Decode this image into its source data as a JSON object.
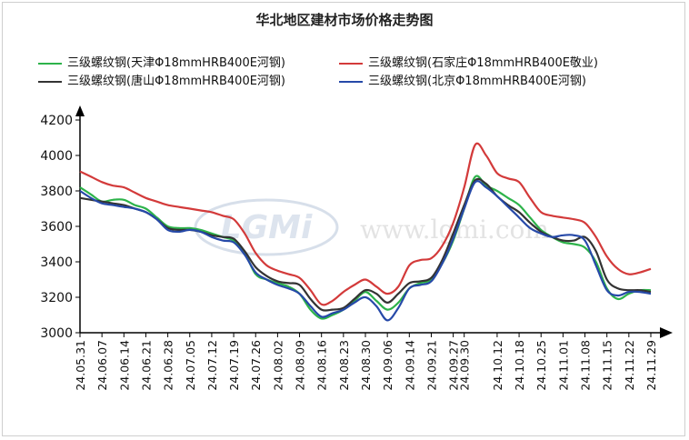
{
  "chart_data": {
    "type": "line",
    "title": "华北地区建材市场价格走势图",
    "watermark": {
      "logo": "LGMi",
      "url": "www.lgmi.com"
    },
    "xlabel": "",
    "ylabel": "",
    "ylim": [
      3000,
      4200
    ],
    "yticks": [
      3000,
      3200,
      3400,
      3600,
      3800,
      4000,
      4200
    ],
    "x": [
      "24.05.31",
      "24.06.03",
      "24.06.07",
      "24.06.11",
      "24.06.14",
      "24.06.18",
      "24.06.21",
      "24.06.25",
      "24.06.28",
      "24.07.02",
      "24.07.05",
      "24.07.09",
      "24.07.12",
      "24.07.16",
      "24.07.19",
      "24.07.23",
      "24.07.26",
      "24.07.30",
      "24.08.02",
      "24.08.06",
      "24.08.09",
      "24.08.13",
      "24.08.16",
      "24.08.20",
      "24.08.23",
      "24.08.27",
      "24.08.30",
      "24.09.03",
      "24.09.06",
      "24.09.10",
      "24.09.14",
      "24.09.18",
      "24.09.21",
      "24.09.24",
      "24.09.27",
      "24.09.30",
      "24.10.08",
      "24.10.10",
      "24.10.12",
      "24.10.15",
      "24.10.18",
      "24.10.22",
      "24.10.25",
      "24.10.29",
      "24.11.01",
      "24.11.05",
      "24.11.08",
      "24.11.12",
      "24.11.15",
      "24.11.19",
      "24.11.22",
      "24.11.26",
      "24.11.29"
    ],
    "xticks_shown": [
      "24.05.31",
      "24.06.07",
      "24.06.14",
      "24.06.21",
      "24.06.28",
      "24.07.05",
      "24.07.12",
      "24.07.19",
      "24.07.26",
      "24.08.02",
      "24.08.09",
      "24.08.16",
      "24.08.23",
      "24.08.30",
      "24.09.06",
      "24.09.14",
      "24.09.21",
      "24.09.27",
      "24.09.30",
      "24.10.12",
      "24.10.18",
      "24.10.25",
      "24.11.01",
      "24.11.08",
      "24.11.15",
      "24.11.22",
      "24.11.29"
    ],
    "legend_position": "top",
    "grid": false,
    "series": [
      {
        "name": "三级螺纹钢(天津Φ18mmHRB400E河钢)",
        "color": "#2db34a",
        "values": [
          3820,
          3780,
          3740,
          3750,
          3750,
          3720,
          3700,
          3650,
          3600,
          3590,
          3590,
          3580,
          3560,
          3540,
          3520,
          3450,
          3330,
          3300,
          3280,
          3260,
          3220,
          3130,
          3080,
          3100,
          3130,
          3180,
          3230,
          3180,
          3130,
          3170,
          3250,
          3280,
          3300,
          3390,
          3520,
          3700,
          3880,
          3830,
          3800,
          3760,
          3720,
          3650,
          3580,
          3540,
          3510,
          3500,
          3480,
          3400,
          3250,
          3190,
          3220,
          3240,
          3240
        ]
      },
      {
        "name": "三级螺纹钢(石家庄Φ18mmHRB400E敬业)",
        "color": "#d33a3a",
        "values": [
          3910,
          3880,
          3850,
          3830,
          3820,
          3790,
          3760,
          3740,
          3720,
          3710,
          3700,
          3690,
          3680,
          3660,
          3640,
          3560,
          3450,
          3380,
          3350,
          3330,
          3310,
          3240,
          3160,
          3180,
          3230,
          3270,
          3300,
          3260,
          3220,
          3260,
          3380,
          3410,
          3420,
          3490,
          3620,
          3820,
          4060,
          4000,
          3900,
          3870,
          3850,
          3760,
          3680,
          3660,
          3650,
          3640,
          3620,
          3540,
          3430,
          3360,
          3330,
          3340,
          3360
        ]
      },
      {
        "name": "三级螺纹钢(唐山Φ18mmHRB400E河钢)",
        "color": "#333333",
        "values": [
          3760,
          3750,
          3740,
          3730,
          3720,
          3700,
          3680,
          3640,
          3590,
          3580,
          3580,
          3570,
          3550,
          3540,
          3530,
          3460,
          3370,
          3320,
          3290,
          3280,
          3270,
          3190,
          3130,
          3130,
          3140,
          3190,
          3240,
          3220,
          3170,
          3220,
          3280,
          3290,
          3310,
          3410,
          3560,
          3720,
          3860,
          3840,
          3770,
          3720,
          3680,
          3620,
          3570,
          3540,
          3520,
          3520,
          3540,
          3460,
          3300,
          3250,
          3240,
          3240,
          3230
        ]
      },
      {
        "name": "三级螺纹钢(北京Φ18mmHRB400E河钢)",
        "color": "#2649a8",
        "values": [
          3800,
          3760,
          3730,
          3720,
          3710,
          3700,
          3680,
          3640,
          3580,
          3570,
          3580,
          3570,
          3540,
          3520,
          3510,
          3440,
          3340,
          3300,
          3270,
          3250,
          3220,
          3150,
          3090,
          3110,
          3130,
          3170,
          3200,
          3150,
          3070,
          3140,
          3250,
          3270,
          3290,
          3390,
          3530,
          3700,
          3850,
          3820,
          3770,
          3710,
          3650,
          3590,
          3560,
          3540,
          3550,
          3550,
          3520,
          3380,
          3240,
          3210,
          3230,
          3230,
          3220
        ]
      }
    ]
  }
}
